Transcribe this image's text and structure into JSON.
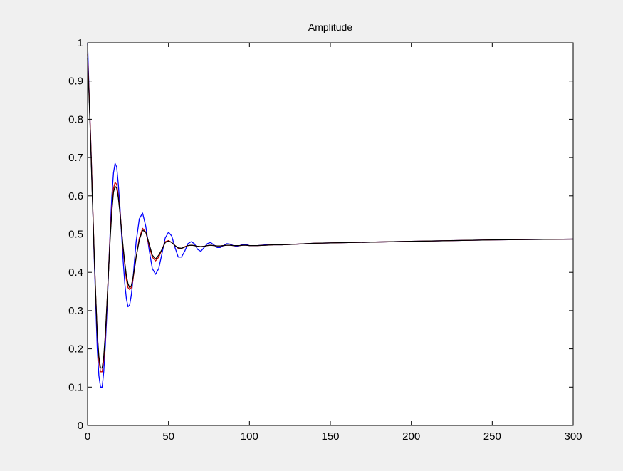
{
  "chart_data": {
    "type": "line",
    "title": "Amplitude",
    "xlabel": "",
    "ylabel": "",
    "xlim": [
      0,
      300
    ],
    "ylim": [
      0,
      1
    ],
    "xticks": [
      0,
      50,
      100,
      150,
      200,
      250,
      300
    ],
    "yticks": [
      0,
      0.1,
      0.2,
      0.3,
      0.4,
      0.5,
      0.6,
      0.7,
      0.8,
      0.9,
      1
    ],
    "grid": false,
    "legend": "none",
    "colors": {
      "blue": "#0000ff",
      "red": "#cc0000",
      "black": "#000000",
      "figure_bg": "#f0f0f0",
      "axes_bg": "#ffffff"
    },
    "series": [
      {
        "color": "#0000ff",
        "x": [
          0,
          1,
          2,
          3,
          4,
          5,
          6,
          7,
          8,
          9,
          10,
          11,
          12,
          13,
          14,
          15,
          16,
          17,
          18,
          19,
          20,
          21,
          22,
          23,
          24,
          25,
          26,
          27,
          28,
          29,
          30,
          32,
          34,
          36,
          38,
          40,
          42,
          44,
          46,
          48,
          50,
          52,
          54,
          56,
          58,
          60,
          62,
          64,
          66,
          68,
          70,
          72,
          74,
          76,
          78,
          80,
          82,
          84,
          86,
          88,
          90,
          92,
          94,
          96,
          98,
          100,
          105,
          110,
          115,
          120,
          130,
          140,
          150,
          175,
          200,
          225,
          250,
          275,
          300
        ],
        "y": [
          1.0,
          0.86,
          0.74,
          0.6,
          0.45,
          0.32,
          0.2,
          0.13,
          0.1,
          0.1,
          0.14,
          0.21,
          0.3,
          0.41,
          0.51,
          0.6,
          0.66,
          0.685,
          0.675,
          0.63,
          0.57,
          0.5,
          0.43,
          0.37,
          0.33,
          0.31,
          0.315,
          0.34,
          0.38,
          0.43,
          0.48,
          0.54,
          0.555,
          0.52,
          0.46,
          0.41,
          0.395,
          0.41,
          0.45,
          0.49,
          0.505,
          0.495,
          0.465,
          0.44,
          0.44,
          0.455,
          0.475,
          0.48,
          0.475,
          0.46,
          0.455,
          0.465,
          0.475,
          0.478,
          0.472,
          0.465,
          0.465,
          0.47,
          0.475,
          0.474,
          0.47,
          0.468,
          0.47,
          0.473,
          0.473,
          0.47,
          0.47,
          0.472,
          0.472,
          0.472,
          0.474,
          0.476,
          0.477,
          0.479,
          0.481,
          0.483,
          0.485,
          0.486,
          0.487
        ]
      },
      {
        "color": "#cc0000",
        "x": [
          0,
          1,
          2,
          3,
          4,
          5,
          6,
          7,
          8,
          9,
          10,
          11,
          12,
          13,
          14,
          15,
          16,
          17,
          18,
          19,
          20,
          21,
          22,
          23,
          24,
          25,
          26,
          27,
          28,
          29,
          30,
          32,
          34,
          36,
          38,
          40,
          42,
          44,
          46,
          48,
          50,
          52,
          54,
          56,
          58,
          60,
          62,
          64,
          66,
          68,
          70,
          72,
          74,
          76,
          78,
          80,
          82,
          84,
          86,
          88,
          90,
          92,
          94,
          96,
          98,
          100,
          105,
          110,
          115,
          120,
          130,
          140,
          150,
          175,
          200,
          225,
          250,
          275,
          300
        ],
        "y": [
          0.97,
          0.86,
          0.74,
          0.6,
          0.46,
          0.34,
          0.24,
          0.17,
          0.14,
          0.14,
          0.17,
          0.23,
          0.32,
          0.41,
          0.5,
          0.57,
          0.62,
          0.635,
          0.63,
          0.6,
          0.56,
          0.51,
          0.46,
          0.42,
          0.38,
          0.36,
          0.355,
          0.36,
          0.38,
          0.41,
          0.44,
          0.49,
          0.515,
          0.505,
          0.47,
          0.44,
          0.43,
          0.44,
          0.46,
          0.48,
          0.483,
          0.478,
          0.47,
          0.463,
          0.462,
          0.467,
          0.47,
          0.471,
          0.47,
          0.468,
          0.467,
          0.468,
          0.47,
          0.471,
          0.47,
          0.469,
          0.469,
          0.47,
          0.471,
          0.471,
          0.47,
          0.47,
          0.47,
          0.471,
          0.471,
          0.47,
          0.47,
          0.471,
          0.472,
          0.472,
          0.474,
          0.476,
          0.477,
          0.479,
          0.481,
          0.483,
          0.485,
          0.486,
          0.487
        ]
      },
      {
        "color": "#000000",
        "x": [
          0,
          1,
          2,
          3,
          4,
          5,
          6,
          7,
          8,
          9,
          10,
          11,
          12,
          13,
          14,
          15,
          16,
          17,
          18,
          19,
          20,
          21,
          22,
          23,
          24,
          25,
          26,
          27,
          28,
          29,
          30,
          32,
          34,
          36,
          38,
          40,
          42,
          44,
          46,
          48,
          50,
          52,
          54,
          56,
          58,
          60,
          62,
          64,
          66,
          68,
          70,
          72,
          74,
          76,
          78,
          80,
          82,
          84,
          86,
          88,
          90,
          92,
          94,
          96,
          98,
          100,
          105,
          110,
          115,
          120,
          130,
          140,
          150,
          175,
          200,
          225,
          250,
          275,
          300
        ],
        "y": [
          0.96,
          0.85,
          0.73,
          0.59,
          0.46,
          0.34,
          0.24,
          0.18,
          0.15,
          0.15,
          0.18,
          0.24,
          0.32,
          0.41,
          0.49,
          0.56,
          0.61,
          0.625,
          0.62,
          0.595,
          0.555,
          0.51,
          0.465,
          0.425,
          0.39,
          0.37,
          0.36,
          0.365,
          0.385,
          0.41,
          0.44,
          0.485,
          0.51,
          0.505,
          0.475,
          0.445,
          0.435,
          0.445,
          0.46,
          0.478,
          0.482,
          0.478,
          0.47,
          0.464,
          0.463,
          0.466,
          0.47,
          0.471,
          0.47,
          0.468,
          0.467,
          0.468,
          0.47,
          0.471,
          0.47,
          0.469,
          0.469,
          0.47,
          0.471,
          0.471,
          0.47,
          0.47,
          0.47,
          0.471,
          0.471,
          0.47,
          0.47,
          0.471,
          0.472,
          0.472,
          0.474,
          0.476,
          0.477,
          0.479,
          0.481,
          0.483,
          0.485,
          0.486,
          0.487
        ]
      }
    ]
  }
}
